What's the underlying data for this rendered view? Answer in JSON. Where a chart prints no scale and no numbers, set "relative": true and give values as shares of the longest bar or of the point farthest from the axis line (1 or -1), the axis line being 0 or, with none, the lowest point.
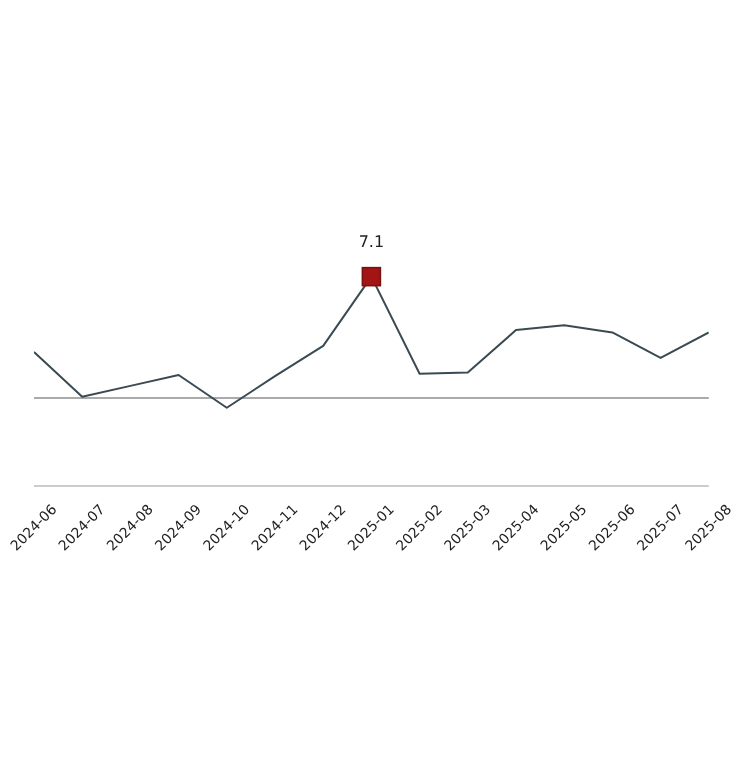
{
  "chart_data": {
    "type": "line",
    "relative": true,
    "categories": [
      "2024-06",
      "2024-07",
      "2024-08",
      "2024-09",
      "2024-10",
      "2024-11",
      "2024-12",
      "2025-01",
      "2025-02",
      "2025-03",
      "2025-04",
      "2025-05",
      "2025-06",
      "2025-07",
      "2025-08"
    ],
    "series": [
      {
        "color": "#3b4a52",
        "values": [
          0.38,
          0.01,
          0.1,
          0.19,
          -0.08,
          0.18,
          0.43,
          1,
          0.2,
          0.21,
          0.56,
          0.6,
          0.54,
          0.33,
          0.54
        ],
        "colors": [
          null,
          null,
          null,
          null,
          null,
          null,
          null,
          "#a31515",
          null,
          null,
          null,
          null,
          null,
          null,
          null
        ]
      }
    ],
    "annotations": [
      {
        "text": "7.1",
        "x": "2025-01",
        "y": 1
      }
    ],
    "line_style": "solid"
  }
}
